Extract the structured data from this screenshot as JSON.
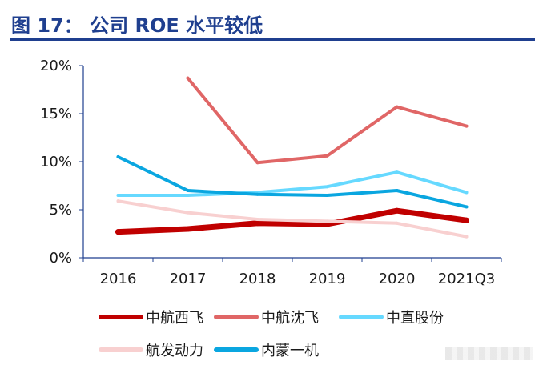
{
  "header": {
    "title": "图 17：  公司 ROE 水平较低"
  },
  "chart_data": {
    "type": "line",
    "title": "",
    "categories": [
      "2016",
      "2017",
      "2018",
      "2019",
      "2020",
      "2021Q3"
    ],
    "y_ticks": [
      "0%",
      "5%",
      "10%",
      "15%",
      "20%"
    ],
    "ylim": [
      0,
      20
    ],
    "yunit": "%",
    "grid": false,
    "legend_position": "bottom",
    "series": [
      {
        "name": "中航西飞",
        "color": "#c00000",
        "width": 7,
        "values": [
          2.7,
          3.0,
          3.6,
          3.5,
          4.9,
          3.9
        ]
      },
      {
        "name": "中航沈飞",
        "color": "#e06666",
        "width": 4,
        "values": [
          null,
          18.7,
          9.9,
          10.6,
          15.7,
          13.7
        ]
      },
      {
        "name": "中直股份",
        "color": "#66d9ff",
        "width": 4,
        "values": [
          6.5,
          6.5,
          6.8,
          7.4,
          8.9,
          6.8
        ]
      },
      {
        "name": "航发动力",
        "color": "#f8d0d0",
        "width": 4,
        "values": [
          5.9,
          4.7,
          4.0,
          3.8,
          3.6,
          2.2
        ]
      },
      {
        "name": "内蒙一机",
        "color": "#0aa6e0",
        "width": 4,
        "values": [
          10.5,
          7.0,
          6.6,
          6.5,
          7.0,
          5.3
        ]
      }
    ]
  }
}
